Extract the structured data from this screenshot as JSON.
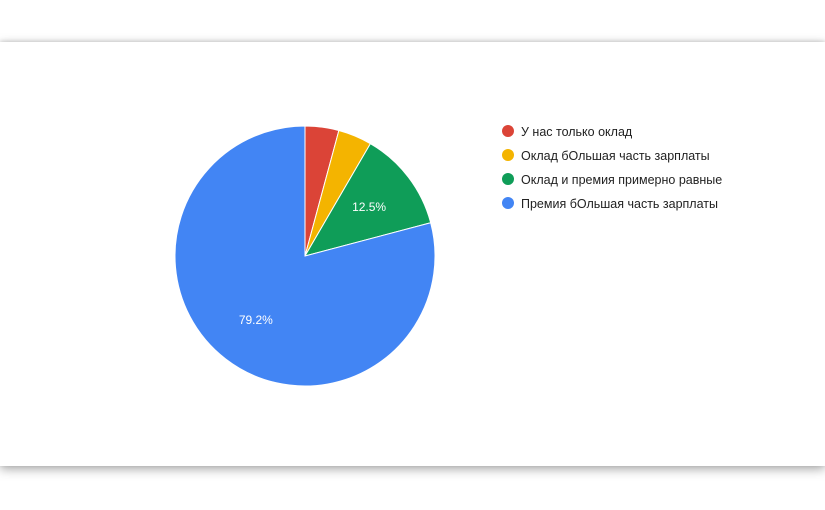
{
  "chart_data": {
    "type": "pie",
    "categories": [
      "У нас только оклад",
      "Оклад бОльшая часть зарплаты",
      "Оклад и премия примерно равные",
      "Премия бОльшая часть зарплаты"
    ],
    "values": [
      4.2,
      4.2,
      12.5,
      79.2
    ],
    "colors": [
      "#DB4437",
      "#F4B400",
      "#0F9D58",
      "#4285F4"
    ],
    "data_labels": [
      "",
      "",
      "12.5%",
      "79.2%"
    ],
    "legend_position": "right"
  },
  "legend": {
    "items": [
      {
        "label": "У нас только оклад",
        "color": "#DB4437"
      },
      {
        "label": "Оклад бОльшая часть зарплаты",
        "color": "#F4B400"
      },
      {
        "label": "Оклад и премия примерно равные",
        "color": "#0F9D58"
      },
      {
        "label": "Премия бОльшая часть зарплаты",
        "color": "#4285F4"
      }
    ]
  }
}
